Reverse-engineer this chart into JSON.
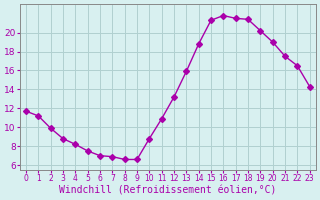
{
  "x": [
    0,
    1,
    2,
    3,
    4,
    5,
    6,
    7,
    8,
    9,
    10,
    11,
    12,
    13,
    14,
    15,
    16,
    17,
    18,
    19,
    20,
    21,
    22,
    23
  ],
  "y": [
    11.7,
    11.2,
    9.9,
    8.8,
    8.2,
    7.5,
    7.0,
    6.9,
    6.6,
    6.6,
    8.8,
    10.9,
    13.2,
    15.9,
    18.8,
    21.3,
    21.8,
    21.5,
    21.4,
    20.2,
    19.0,
    17.5,
    16.5,
    14.3
  ],
  "line_color": "#aa00aa",
  "marker": "D",
  "marker_size": 3,
  "bg_color": "#d8f0f0",
  "grid_color": "#b0d0d0",
  "xlabel": "Windchill (Refroidissement éolien,°C)",
  "ylim": [
    5.5,
    23
  ],
  "xlim": [
    -0.5,
    23.5
  ],
  "yticks": [
    6,
    8,
    10,
    12,
    14,
    16,
    18,
    20
  ],
  "xticks": [
    0,
    1,
    2,
    3,
    4,
    5,
    6,
    7,
    8,
    9,
    10,
    11,
    12,
    13,
    14,
    15,
    16,
    17,
    18,
    19,
    20,
    21,
    22,
    23
  ],
  "xlabel_fontsize": 7,
  "tick_fontsize": 6.5
}
